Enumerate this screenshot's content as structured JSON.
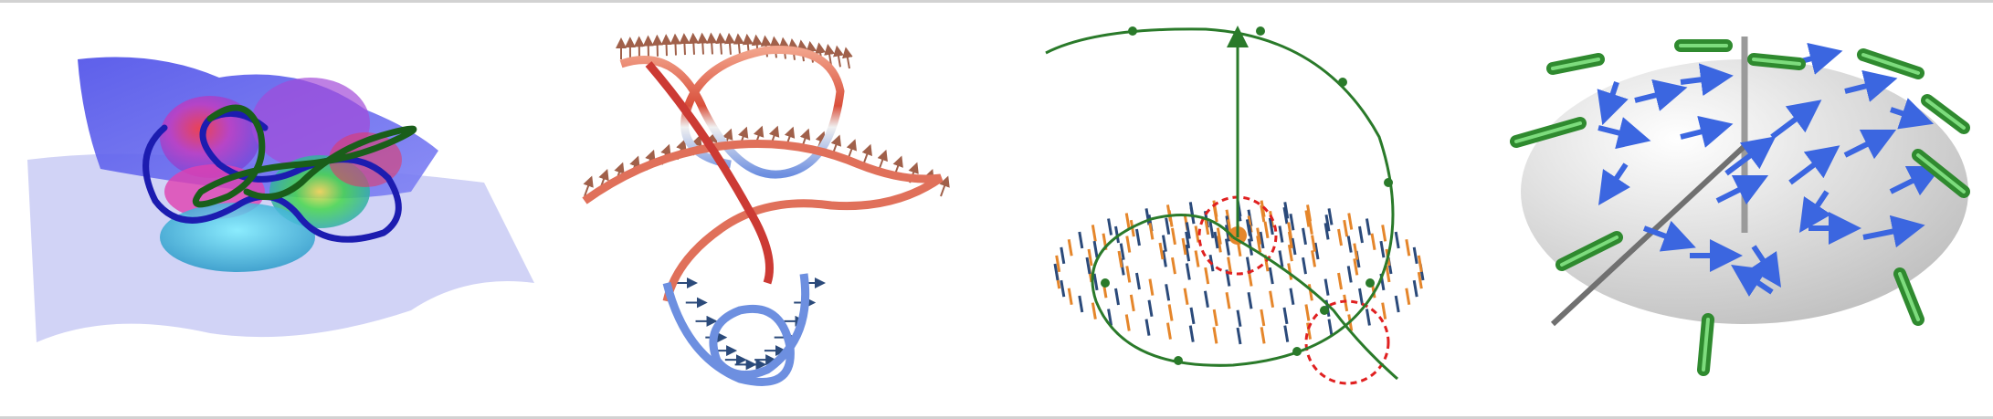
{
  "figure": {
    "panels": [
      {
        "id": "knot-surfaces",
        "description_visible": false
      },
      {
        "id": "framed-ribbon",
        "description_visible": false
      },
      {
        "id": "spiral-vector-field",
        "description_visible": false
      },
      {
        "id": "disk-vector-field",
        "description_visible": false
      }
    ],
    "colors": {
      "surface_blue": "#5a5cf0",
      "surface_pale": "#c9cbf5",
      "knot_green": "#1a5e1a",
      "knot_blue": "#1c1cb0",
      "ribbon_red": "#d9503c",
      "ribbon_salmon": "#f2a38b",
      "ribbon_blue": "#6d8fe0",
      "arrow_brown": "#a0604a",
      "arrow_navy": "#2b4a7a",
      "arrow_orange": "#e5862b",
      "dashed_red": "#e02020",
      "tube_green": "#3a9a3a",
      "vector_blue": "#3b66e0",
      "disk_gray": "#d6d6d6",
      "axis_gray": "#888888"
    }
  }
}
